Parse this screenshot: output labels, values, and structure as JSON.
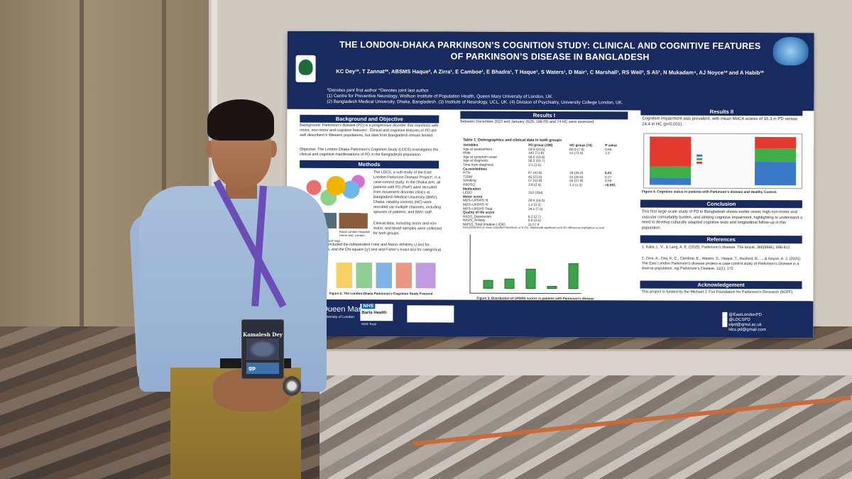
{
  "poster": {
    "title_line1": "THE LONDON-DHAKA PARKINSON’S COGNITION STUDY: CLINICAL AND COGNITIVE FEATURES",
    "title_line2": "OF PARKINSON’S DISEASE IN BANGLADESH",
    "authors": "KC Dey¹*, T Zannat²*, ABSMS Haque², A Zirra¹, E Camboe¹, E Bhadra¹, T Haque¹, S Waters¹, D Mair¹, C Marshall¹, RS Weil³, S Ali¹, N Mukadam⁴, AJ Noyce¹* and A Habib²*",
    "affiliations": [
      "*Denotes joint first author  ^Denotes joint last author",
      "(1) Centre for Preventive Neurology, Wolfson Institute of Population Health, Queen Mary University of London, UK.",
      "(2) Bangladesh Medical University, Dhaka, Bangladesh. (3) Institute of Neurology, UCL, UK. (4) Division of Psychiatry, University College London, UK."
    ],
    "background": {
      "heading": "Background and Objective",
      "text": "Background: Parkinson’s disease (PD) is a progressive disorder that manifests with motor, non-motor and cognitive features¹. Clinical and cognitive features of PD are well described in Western populations, but data from Bangladesh remain limited.",
      "objective": "Objective: The London Dhaka Parkinson’s Cognition Study (LDCS) investigates the clinical and cognitive manifestations of PD in the Bangladeshi population."
    },
    "methods": {
      "heading": "Methods",
      "text1": "The LDCS, a sub-study of the East London Parkinson Disease Project², is a case-control study. In the Dhaka arm, all patients with PD (PwP) were recruited from movement disorder clinics at Bangladesh Medical University (BMU), Dhaka. Healthy controls (HC) were recruited via multiple channels, including spouses of patients, and BMU staff.",
      "text2": "Clinical data, including motor and non-motor, and blood samples were collected for both groups.",
      "map_caption": "Figure 1: LDCS recruitment map",
      "photo_label_left": "Dhaka Medical",
      "photo_label_right": "Royal London Hospital/ Home visit, London.",
      "stats_text": "Statistical analyses included the independent t-test and Mann–Whitney U test for continuous variables, and the Chi-square (χ²) test and Fisher’s exact test for categorical variables.",
      "protocol_caption": "Figure 2. The London-Dhaka Parkinson’s Cognition Study Protocol"
    },
    "results1": {
      "heading": "Results I",
      "intro": "Between December 2022 and January 2025, 199 PD and 74 HC were assessed.",
      "table_title": "Table 1. Demographics and clinical data in both groups",
      "columns": [
        "Variables",
        "PD group (199)",
        "HC group (74)",
        "P value"
      ],
      "rows": [
        [
          "Age at assessment",
          "59.9 (10.5)",
          "60.0 (7.4)",
          "0.64"
        ],
        [
          "Male",
          "143 (71.9)",
          "53 (71.6)",
          "1.0"
        ],
        [
          "Age at symptom onset",
          "56.0 (10.6)",
          "",
          ""
        ],
        [
          "Age at diagnosis",
          "56.3 (10.7)",
          "",
          ""
        ],
        [
          "Time from diagnosis",
          "3.5 (3.5)",
          "",
          ""
        ],
        [
          "Co-morbidities",
          "",
          "",
          ""
        ],
        [
          "HTN",
          "87 (43.9)",
          "18 (25.0)",
          "0.01"
        ],
        [
          "T2DM",
          "45 (23.0)",
          "22 (30.6)",
          "0.27"
        ],
        [
          "Smoking",
          "57 (32.9)",
          "25 (37.9)",
          "0.59"
        ],
        [
          "RBDSQ",
          "3.8 (2.4)",
          "1.2 (1.2)",
          "<0.001"
        ],
        [
          "Medication",
          "",
          "",
          ""
        ],
        [
          "LEDD",
          "312 (204)",
          "",
          ""
        ],
        [
          "Motor score",
          "",
          "",
          ""
        ],
        [
          "MDS–UPDRS III",
          "28.4 (16.0)",
          "",
          ""
        ],
        [
          "MDS–UPDRS IV",
          "1.3 (3.3)",
          "",
          ""
        ],
        [
          "MDS–UPDRS Total",
          "34.1 (7.5)",
          "",
          ""
        ],
        [
          "Quality of life score",
          "",
          "",
          ""
        ],
        [
          "HADS_Depression",
          "8.3 (2.7)",
          "",
          ""
        ],
        [
          "HADS_Anxiety",
          "6.8 (2.5)",
          "",
          ""
        ],
        [
          "NMSQ_Total (median | IQR)",
          "11.0 | 8",
          "",
          ""
        ]
      ],
      "table_note": "Data presented as mean (standard deviation), or N (%). Statistically significant (p<0.05) differences highlighted as bold.",
      "figure3_caption": "Figure 3. Distribution of UPDRS scores in patients with Parkinson’s disease"
    },
    "results2": {
      "heading": "Results II",
      "text": "Cognitive impairment was prevalent, with mean MoCA scores of 16.3 in PD versus 24.4 in HC (p<0.001).",
      "figure4_caption": "Figure 4. Cognitive status in patients  with Parkinson’s disease and Healthy Control."
    },
    "conclusion": {
      "heading": "Conclusion",
      "text": "This first large-scale study of PD in Bangladesh shows earlier onset, high non-motor and vascular comorbidity burden, and striking cognitive impairment, highlighting to understand a need to develop culturally adapted cognitive tests and longitudinal follow-up in this population."
    },
    "references": {
      "heading": "References",
      "items": [
        "1. Kalia, L. V., & Lang, A. E. (2015). Parkinson’s disease. The lancet, 386(9996), 896-912.",
        "2. Zirra, A., Dey, K. C., Camboe, E., Waters, S., Haque, T., Huxford, B., ... & Noyce, A. J. (2025). The East London Parkinson’s disease project–a case-control study of Parkinson’s Disease in a diverse population. npj Parkinson’s Disease, 11(1), 172."
      ]
    },
    "acknowledgement": {
      "heading": "Acknowledgement",
      "text": "This project is funded  by the Michael J. Fox Foundation for Parkinson’s Research (MJFF)."
    },
    "logos": {
      "queen_mary": "Queen Mary",
      "queen_mary_sub": "University of London",
      "nhs": "NHS",
      "barts": "Barts Health",
      "barts_sub": "NHS Trust"
    },
    "contacts": [
      "@EastLondonPD",
      "@LDCSPD",
      "elpd@qmul.ac.uk",
      "ldcs.pd@gmail.com"
    ]
  },
  "badge": {
    "name": "Kamalesh Dey",
    "logo": "gp"
  }
}
